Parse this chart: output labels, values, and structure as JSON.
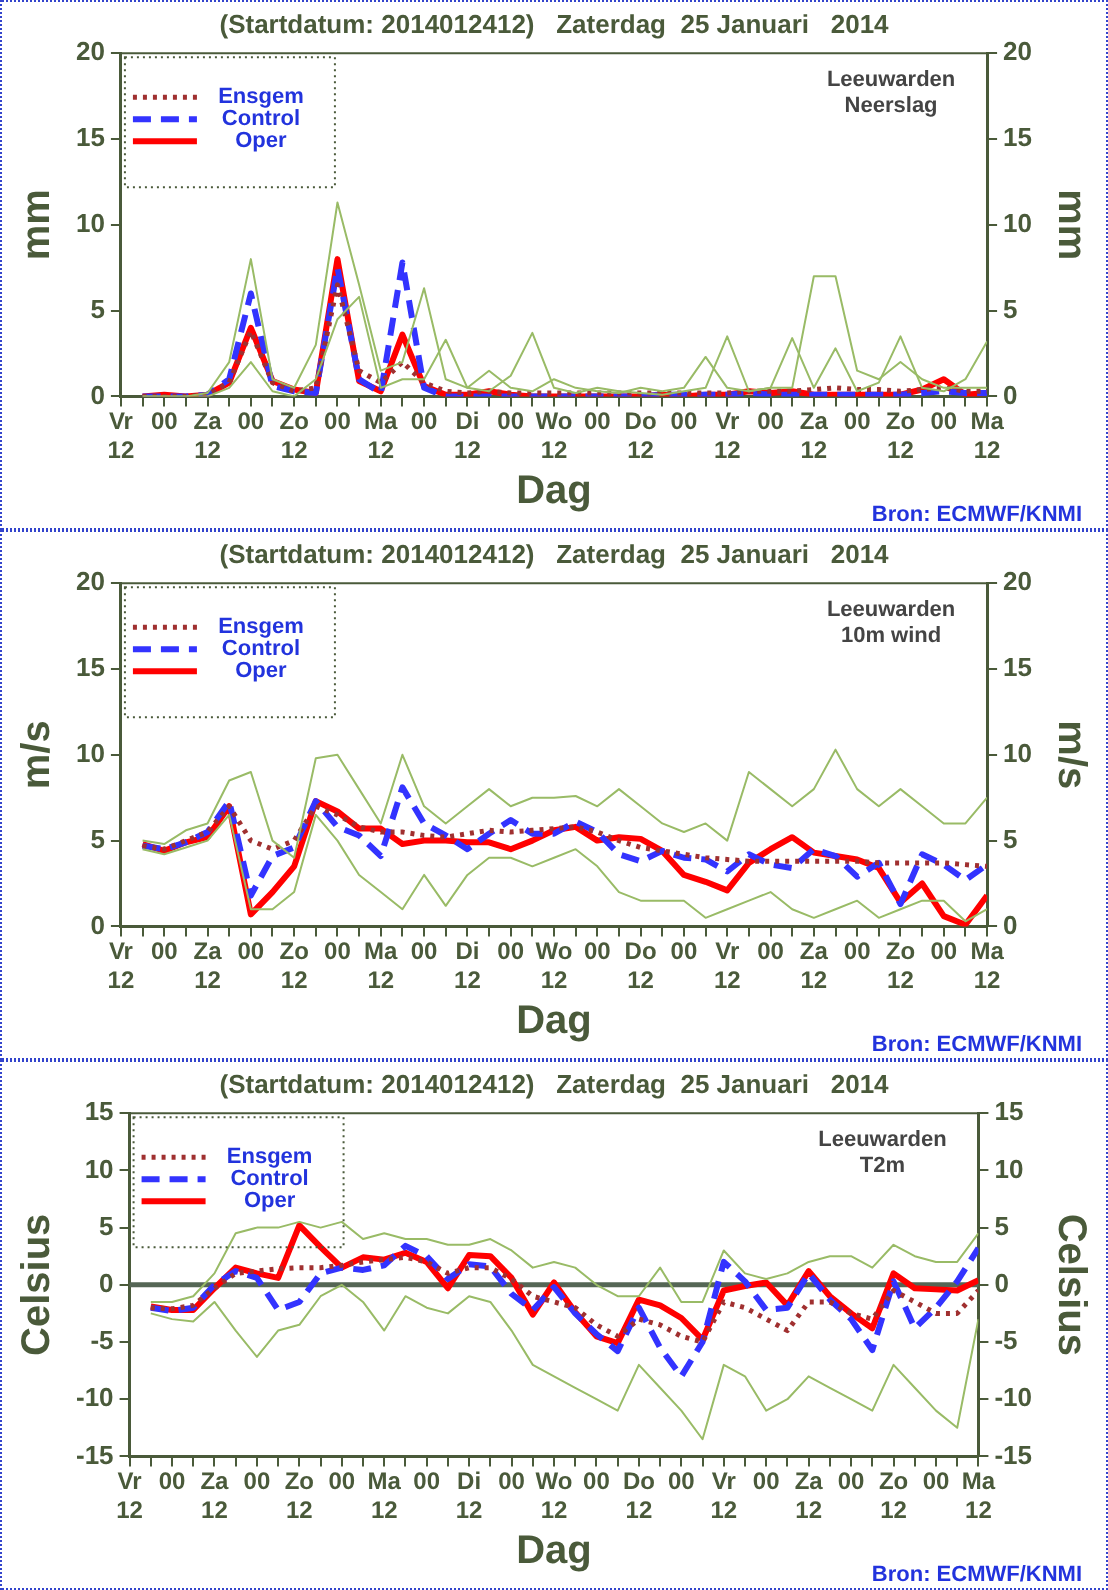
{
  "chart_data": [
    {
      "type": "line",
      "title": "(Startdatum: 2014012412)   Zaterdag  25 Januari   2014",
      "xlabel": "Dag",
      "ylabel": "mm",
      "y2label": "mm",
      "annotations": [
        "Leeuwarden",
        "Neerslag",
        "Bron: ECMWF/KNMI"
      ],
      "legend": "top left",
      "grid": false,
      "categories": [
        "Vr\n12",
        null,
        "00",
        null,
        "Za\n12",
        null,
        "00",
        null,
        "Zo\n12",
        null,
        "00",
        null,
        "Ma\n12",
        null,
        "00",
        null,
        "Di\n12",
        null,
        "00",
        null,
        "Wo\n12",
        null,
        "00",
        null,
        "Do\n12",
        null,
        "00",
        null,
        "Vr\n12",
        null,
        "00",
        null,
        "Za\n12",
        null,
        "00",
        null,
        "Zo\n12",
        null,
        "00",
        null,
        "Ma\n12"
      ],
      "ylim": [
        0,
        20
      ],
      "yticks": [
        0,
        5,
        10,
        15,
        20
      ],
      "y2lim": [
        0,
        20
      ],
      "y2ticks": [
        0,
        5,
        10,
        15,
        20
      ],
      "series": [
        {
          "color": "#99bb66",
          "line_style": "solid",
          "values": [
            null,
            0,
            0,
            0,
            0.2,
            2,
            8,
            1,
            0.5,
            3,
            11.3,
            6.5,
            1.5,
            2,
            6.3,
            1,
            0.5,
            1.5,
            0.5,
            0.3,
            1,
            0.5,
            0.3,
            0.2,
            0.5,
            0.3,
            0.5,
            2.3,
            0.5,
            0.3,
            0.5,
            0.5,
            7,
            7,
            1.5,
            1,
            2,
            1,
            0.5,
            0.5,
            0.5
          ]
        },
        {
          "color": "#99bb66",
          "line_style": "solid",
          "values": [
            null,
            0,
            0,
            0,
            0,
            0.5,
            2,
            0.3,
            0,
            1,
            4.5,
            5.8,
            0.5,
            1,
            1,
            3.3,
            0.5,
            0.3,
            1.2,
            3.7,
            0.5,
            0.2,
            0.5,
            0.3,
            0.2,
            0.1,
            0.3,
            0.5,
            3.5,
            0.3,
            0.5,
            3.4,
            0.5,
            2.8,
            0.3,
            0.8,
            3.5,
            0.5,
            0.3,
            1,
            3.2
          ]
        },
        {
          "name": "Ensgem",
          "color": "#a03030",
          "line_style": "dotted",
          "values": [
            null,
            0,
            0,
            0,
            0.1,
            0.8,
            3.8,
            0.8,
            0.3,
            0.5,
            6.5,
            1.5,
            0.8,
            2,
            0.8,
            0.3,
            0.2,
            0.3,
            0.2,
            0.2,
            0.2,
            0.2,
            0.2,
            0.2,
            0.2,
            0.2,
            0.2,
            0.2,
            0.2,
            0.3,
            0.3,
            0.3,
            0.4,
            0.5,
            0.4,
            0.4,
            0.3,
            0.4,
            0.5,
            0.3,
            0.3
          ]
        },
        {
          "name": "Control",
          "color": "#3333ff",
          "line_style": "dashed",
          "values": [
            null,
            0,
            0,
            0,
            0.1,
            1,
            6,
            0.6,
            0.3,
            0.2,
            7.5,
            1,
            0.2,
            7.8,
            0.5,
            0,
            0,
            0,
            0,
            0,
            0,
            0,
            0,
            0,
            0,
            0.1,
            0.1,
            0.1,
            0.1,
            0.2,
            0.1,
            0.1,
            0.1,
            0.1,
            0.1,
            0.1,
            0.1,
            0.2,
            0.3,
            0.2,
            0.2
          ]
        },
        {
          "name": "Oper",
          "color": "#ff0000",
          "line_style": "solid",
          "values": [
            null,
            0,
            0.1,
            0,
            0.1,
            0.8,
            4,
            0.9,
            0.4,
            0.2,
            8,
            0.9,
            0.3,
            3.6,
            0.6,
            0.1,
            0.1,
            0.3,
            0.1,
            0,
            0,
            0,
            0,
            0,
            0,
            0.1,
            0,
            0.1,
            0.1,
            0.3,
            0.2,
            0.3,
            0.1,
            0.1,
            0.1,
            0.1,
            0.1,
            0.4,
            1,
            0.1,
            0.2
          ]
        }
      ]
    },
    {
      "type": "line",
      "title": "(Startdatum: 2014012412)   Zaterdag  25 Januari   2014",
      "xlabel": "Dag",
      "ylabel": "m/s",
      "y2label": "m/s",
      "annotations": [
        "Leeuwarden",
        "10m wind",
        "Bron: ECMWF/KNMI"
      ],
      "legend": "top left",
      "grid": false,
      "categories": [
        "Vr\n12",
        null,
        "00",
        null,
        "Za\n12",
        null,
        "00",
        null,
        "Zo\n12",
        null,
        "00",
        null,
        "Ma\n12",
        null,
        "00",
        null,
        "Di\n12",
        null,
        "00",
        null,
        "Wo\n12",
        null,
        "00",
        null,
        "Do\n12",
        null,
        "00",
        null,
        "Vr\n12",
        null,
        "00",
        null,
        "Za\n12",
        null,
        "00",
        null,
        "Zo\n12",
        null,
        "00",
        null,
        "Ma\n12"
      ],
      "ylim": [
        0,
        20
      ],
      "yticks": [
        0,
        5,
        10,
        15,
        20
      ],
      "y2lim": [
        0,
        20
      ],
      "y2ticks": [
        0,
        5,
        10,
        15,
        20
      ],
      "series": [
        {
          "color": "#99bb66",
          "line_style": "solid",
          "values": [
            null,
            5,
            4.8,
            5.6,
            6,
            8.5,
            9,
            5,
            4,
            9.8,
            10,
            8,
            6,
            10,
            7,
            6,
            7,
            8,
            7,
            7.5,
            7.5,
            7.6,
            7,
            8,
            7,
            6,
            5.5,
            6,
            5,
            9,
            8,
            7,
            8,
            10.3,
            8,
            7,
            8,
            7,
            6,
            6,
            7.5
          ]
        },
        {
          "color": "#99bb66",
          "line_style": "solid",
          "values": [
            null,
            4.5,
            4.2,
            4.6,
            5,
            6.5,
            1,
            1,
            2,
            6.5,
            5,
            3,
            2,
            1,
            3,
            1.2,
            3,
            4,
            4,
            3.5,
            4,
            4.5,
            3.5,
            2,
            1.5,
            1.5,
            1.5,
            0.5,
            1,
            1.5,
            2,
            1,
            0.5,
            1,
            1.5,
            0.5,
            1,
            1.5,
            1.5,
            0.3,
            1
          ]
        },
        {
          "name": "Ensgem",
          "color": "#a03030",
          "line_style": "dotted",
          "values": [
            null,
            4.7,
            4.5,
            5,
            5.5,
            7,
            5,
            4.5,
            5,
            7,
            6.5,
            5.8,
            5.5,
            5.5,
            5.3,
            5.2,
            5.4,
            5.6,
            5.5,
            5.6,
            5.7,
            5.8,
            5.5,
            5,
            4.6,
            4.4,
            4.2,
            4,
            3.9,
            3.8,
            3.8,
            3.8,
            3.8,
            3.8,
            3.8,
            3.7,
            3.7,
            3.7,
            3.7,
            3.6,
            3.5
          ]
        },
        {
          "name": "Control",
          "color": "#3333ff",
          "line_style": "dashed",
          "values": [
            null,
            4.7,
            4.5,
            4.9,
            5.5,
            7.3,
            1.8,
            4.1,
            4.6,
            7.3,
            5.8,
            5.3,
            4.1,
            8.1,
            6,
            5.3,
            4.5,
            5.4,
            6.2,
            5.4,
            5.4,
            6.1,
            5.5,
            4.2,
            3.8,
            4.4,
            4,
            3.9,
            3.2,
            4.2,
            3.6,
            3.4,
            4.5,
            4.1,
            2.9,
            3.7,
            1.3,
            4.2,
            3.6,
            2.7,
            3.6
          ]
        },
        {
          "name": "Oper",
          "color": "#ff0000",
          "line_style": "solid",
          "values": [
            null,
            4.8,
            4.4,
            4.9,
            5.2,
            7,
            0.7,
            2,
            3.5,
            7.3,
            6.7,
            5.7,
            5.7,
            4.8,
            5,
            5,
            4.9,
            4.9,
            4.5,
            5,
            5.6,
            5.8,
            5,
            5.2,
            5.1,
            4.4,
            3,
            2.6,
            2.1,
            3.7,
            4.5,
            5.2,
            4.3,
            4.1,
            3.9,
            3.4,
            1.4,
            2.5,
            0.6,
            0.1,
            1.8
          ]
        }
      ]
    },
    {
      "type": "line",
      "title": "(Startdatum: 2014012412)   Zaterdag  25 Januari   2014",
      "xlabel": "Dag",
      "ylabel": "Celsius",
      "y2label": "Celsius",
      "annotations": [
        "Leeuwarden",
        "T2m",
        "Bron: ECMWF/KNMI"
      ],
      "legend": "top left",
      "grid": false,
      "ref_lines": [
        {
          "axis": "y",
          "value": 0,
          "color": "#556655"
        }
      ],
      "categories": [
        "Vr\n12",
        null,
        "00",
        null,
        "Za\n12",
        null,
        "00",
        null,
        "Zo\n12",
        null,
        "00",
        null,
        "Ma\n12",
        null,
        "00",
        null,
        "Di\n12",
        null,
        "00",
        null,
        "Wo\n12",
        null,
        "00",
        null,
        "Do\n12",
        null,
        "00",
        null,
        "Vr\n12",
        null,
        "00",
        null,
        "Za\n12",
        null,
        "00",
        null,
        "Zo\n12",
        null,
        "00",
        null,
        "Ma\n12"
      ],
      "ylim": [
        -15,
        15
      ],
      "yticks": [
        -15,
        -10,
        -5,
        0,
        5,
        10,
        15
      ],
      "y2lim": [
        -15,
        15
      ],
      "y2ticks": [
        -15,
        -10,
        -5,
        0,
        5,
        10,
        15
      ],
      "series": [
        {
          "color": "#99bb66",
          "line_style": "solid",
          "values": [
            null,
            -1.5,
            -1.5,
            -1,
            1,
            4.5,
            5,
            5,
            5.5,
            5,
            5.5,
            4,
            4.5,
            4,
            4,
            3.5,
            3.5,
            4,
            3,
            1.5,
            2,
            1.5,
            0,
            -1,
            -1,
            1.5,
            -1.5,
            -1.5,
            3,
            1,
            0.5,
            1,
            2,
            2.5,
            2.5,
            1.5,
            3.5,
            2.5,
            2,
            2,
            4.5
          ]
        },
        {
          "color": "#99bb66",
          "line_style": "solid",
          "values": [
            null,
            -2.5,
            -3,
            -3.2,
            -1.5,
            -4,
            -6.3,
            -4,
            -3.5,
            -1,
            0,
            -1.5,
            -4,
            -1,
            -2,
            -2.5,
            -1,
            -1.5,
            -4,
            -7,
            -8,
            -9,
            -10,
            -11,
            -7,
            -9,
            -11,
            -13.5,
            -7,
            -8,
            -11,
            -10,
            -8,
            -9,
            -10,
            -11,
            -7,
            -9,
            -11,
            -12.5,
            -3
          ]
        },
        {
          "name": "Ensgem",
          "color": "#a03030",
          "line_style": "dotted",
          "values": [
            null,
            -2,
            -2.1,
            -1.8,
            -0.3,
            1,
            1.2,
            1.4,
            1.5,
            1.5,
            1.7,
            2,
            2.2,
            2.4,
            2,
            1,
            1.5,
            1.5,
            0.5,
            -1,
            -1.5,
            -2,
            -3.5,
            -4.5,
            -3,
            -3.5,
            -4.5,
            -5,
            -1.5,
            -2,
            -3,
            -4,
            -1.5,
            -1.5,
            -2.5,
            -3,
            -0.5,
            -1.5,
            -2.5,
            -2.5,
            -0.5
          ]
        },
        {
          "name": "Control",
          "color": "#3333ff",
          "line_style": "dashed",
          "values": [
            null,
            -2,
            -2.3,
            -2,
            0,
            1.2,
            0.6,
            -2.2,
            -1.5,
            1,
            1.5,
            1.3,
            1.7,
            3.4,
            2.5,
            0.5,
            1.8,
            1.6,
            -0.8,
            -2.2,
            -0.2,
            -2.5,
            -4.3,
            -5.8,
            -2,
            -5.5,
            -8,
            -5,
            2,
            0.3,
            -2.2,
            -2,
            1,
            -1.3,
            -3,
            -5.7,
            0.3,
            -3.8,
            -2,
            0.3,
            3.2
          ]
        },
        {
          "name": "Oper",
          "color": "#ff0000",
          "line_style": "solid",
          "values": [
            null,
            -1.9,
            -2.2,
            -2.2,
            -0.3,
            1.5,
            1,
            0.6,
            5.2,
            3.3,
            1.5,
            2.4,
            2.2,
            2.8,
            2,
            -0.3,
            2.6,
            2.5,
            0.6,
            -2.6,
            0.2,
            -2.4,
            -4.5,
            -5.1,
            -1.3,
            -1.8,
            -2.9,
            -4.8,
            -0.5,
            -0.1,
            0.2,
            -1.8,
            1.2,
            -1,
            -2.5,
            -3.8,
            1,
            -0.3,
            -0.4,
            -0.5,
            0.4
          ]
        }
      ]
    }
  ]
}
